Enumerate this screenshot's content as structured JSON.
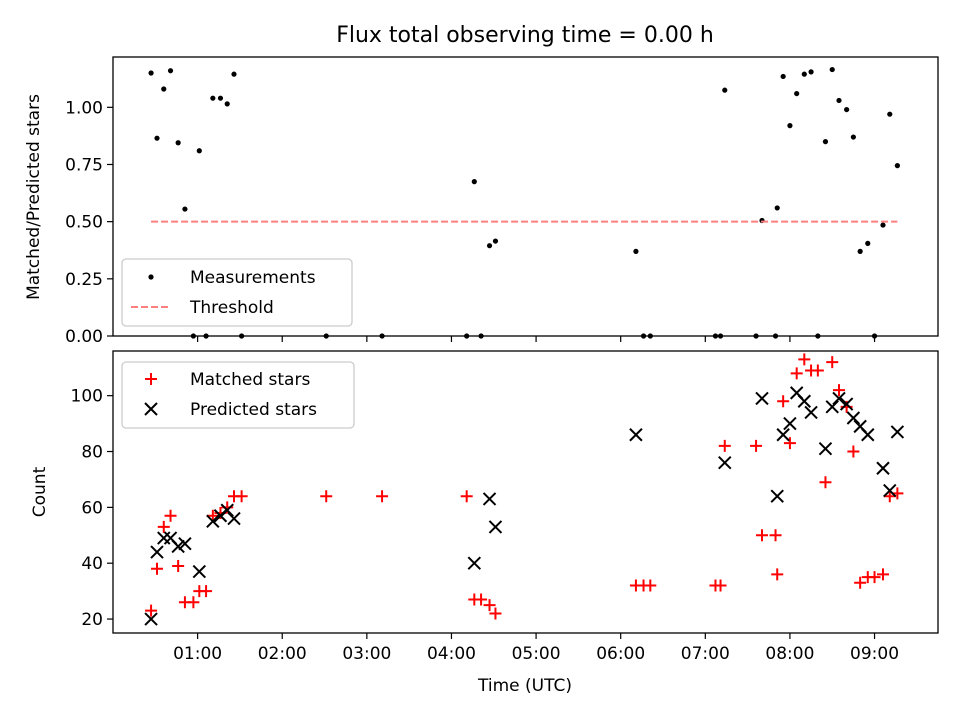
{
  "chart_data": [
    {
      "type": "scatter",
      "title": "Flux total observing time = 0.00 h",
      "xlabel": "",
      "ylabel": "Matched/Predicted stars",
      "xlim": [
        0.0,
        9.75
      ],
      "ylim": [
        0.0,
        1.22
      ],
      "yticks": [
        0.0,
        0.25,
        0.5,
        0.75,
        1.0
      ],
      "ytick_labels": [
        "0.00",
        "0.25",
        "0.50",
        "0.75",
        "1.00"
      ],
      "legend": "lower-left",
      "series": [
        {
          "name": "Measurements",
          "marker": "dot",
          "color": "#000000",
          "points": [
            [
              0.45,
              1.15
            ],
            [
              0.52,
              0.865
            ],
            [
              0.6,
              1.08
            ],
            [
              0.68,
              1.16
            ],
            [
              0.77,
              0.845
            ],
            [
              0.85,
              0.555
            ],
            [
              0.95,
              0.0
            ],
            [
              1.02,
              0.81
            ],
            [
              1.1,
              0.0
            ],
            [
              1.18,
              1.04
            ],
            [
              1.27,
              1.04
            ],
            [
              1.35,
              1.015
            ],
            [
              1.43,
              1.145
            ],
            [
              1.52,
              0.0
            ],
            [
              2.52,
              0.0
            ],
            [
              3.18,
              0.0
            ],
            [
              4.18,
              0.0
            ],
            [
              4.27,
              0.675
            ],
            [
              4.35,
              0.0
            ],
            [
              4.45,
              0.395
            ],
            [
              4.52,
              0.415
            ],
            [
              6.18,
              0.37
            ],
            [
              6.27,
              0.0
            ],
            [
              6.35,
              0.0
            ],
            [
              7.12,
              0.0
            ],
            [
              7.18,
              0.0
            ],
            [
              7.23,
              1.075
            ],
            [
              7.6,
              0.0
            ],
            [
              7.67,
              0.505
            ],
            [
              7.83,
              0.0
            ],
            [
              7.85,
              0.56
            ],
            [
              7.92,
              1.135
            ],
            [
              8.0,
              0.92
            ],
            [
              8.08,
              1.06
            ],
            [
              8.17,
              1.145
            ],
            [
              8.25,
              1.155
            ],
            [
              8.33,
              0.0
            ],
            [
              8.42,
              0.85
            ],
            [
              8.5,
              1.165
            ],
            [
              8.58,
              1.03
            ],
            [
              8.67,
              0.99
            ],
            [
              8.75,
              0.87
            ],
            [
              8.83,
              0.37
            ],
            [
              8.92,
              0.405
            ],
            [
              9.0,
              0.0
            ],
            [
              9.1,
              0.485
            ],
            [
              9.18,
              0.97
            ],
            [
              9.27,
              0.745
            ]
          ]
        },
        {
          "name": "Threshold",
          "style": "dashed",
          "color": "#ff7f7f",
          "points": [
            [
              0.45,
              0.5
            ],
            [
              9.27,
              0.5
            ]
          ]
        }
      ]
    },
    {
      "type": "scatter",
      "xlabel": "Time (UTC)",
      "ylabel": "Count",
      "xlim": [
        0.0,
        9.75
      ],
      "ylim": [
        15.0,
        116.0
      ],
      "yticks": [
        20,
        40,
        60,
        80,
        100
      ],
      "ytick_labels": [
        "20",
        "40",
        "60",
        "80",
        "100"
      ],
      "xticks": [
        1,
        2,
        3,
        4,
        5,
        6,
        7,
        8,
        9
      ],
      "xtick_labels": [
        "01:00",
        "02:00",
        "03:00",
        "04:00",
        "05:00",
        "06:00",
        "07:00",
        "08:00",
        "09:00"
      ],
      "legend": "top-left",
      "series": [
        {
          "name": "Matched stars",
          "marker": "plus",
          "color": "#ff0000",
          "points": [
            [
              0.45,
              23
            ],
            [
              0.52,
              38
            ],
            [
              0.6,
              53
            ],
            [
              0.68,
              57
            ],
            [
              0.77,
              39
            ],
            [
              0.85,
              26
            ],
            [
              0.95,
              26
            ],
            [
              1.02,
              30
            ],
            [
              1.1,
              30
            ],
            [
              1.18,
              57
            ],
            [
              1.27,
              58
            ],
            [
              1.35,
              60
            ],
            [
              1.43,
              64
            ],
            [
              1.52,
              64
            ],
            [
              2.52,
              64
            ],
            [
              3.18,
              64
            ],
            [
              4.18,
              64
            ],
            [
              4.27,
              27
            ],
            [
              4.35,
              27
            ],
            [
              4.45,
              25
            ],
            [
              4.52,
              22
            ],
            [
              6.18,
              32
            ],
            [
              6.27,
              32
            ],
            [
              6.35,
              32
            ],
            [
              7.12,
              32
            ],
            [
              7.18,
              32
            ],
            [
              7.23,
              82
            ],
            [
              7.6,
              82
            ],
            [
              7.67,
              50
            ],
            [
              7.83,
              50
            ],
            [
              7.85,
              36
            ],
            [
              7.92,
              98
            ],
            [
              8.0,
              83
            ],
            [
              8.08,
              108
            ],
            [
              8.17,
              113
            ],
            [
              8.25,
              109
            ],
            [
              8.33,
              109
            ],
            [
              8.42,
              69
            ],
            [
              8.5,
              112
            ],
            [
              8.58,
              102
            ],
            [
              8.67,
              96
            ],
            [
              8.75,
              80
            ],
            [
              8.83,
              33
            ],
            [
              8.92,
              35
            ],
            [
              9.0,
              35
            ],
            [
              9.1,
              36
            ],
            [
              9.18,
              64
            ],
            [
              9.27,
              65
            ]
          ]
        },
        {
          "name": "Predicted stars",
          "marker": "x",
          "color": "#000000",
          "points": [
            [
              0.45,
              20
            ],
            [
              0.52,
              44
            ],
            [
              0.6,
              49
            ],
            [
              0.68,
              49
            ],
            [
              0.77,
              46
            ],
            [
              0.85,
              47
            ],
            [
              1.02,
              37
            ],
            [
              1.18,
              55
            ],
            [
              1.27,
              57
            ],
            [
              1.35,
              59
            ],
            [
              1.43,
              56
            ],
            [
              4.27,
              40
            ],
            [
              4.45,
              63
            ],
            [
              4.52,
              53
            ],
            [
              6.18,
              86
            ],
            [
              7.23,
              76
            ],
            [
              7.67,
              99
            ],
            [
              7.85,
              64
            ],
            [
              7.92,
              86
            ],
            [
              8.0,
              90
            ],
            [
              8.08,
              101
            ],
            [
              8.17,
              98
            ],
            [
              8.25,
              94
            ],
            [
              8.42,
              81
            ],
            [
              8.5,
              96
            ],
            [
              8.58,
              99
            ],
            [
              8.67,
              97
            ],
            [
              8.75,
              92
            ],
            [
              8.83,
              89
            ],
            [
              8.92,
              86
            ],
            [
              9.1,
              74
            ],
            [
              9.18,
              66
            ],
            [
              9.27,
              87
            ]
          ]
        }
      ]
    }
  ]
}
